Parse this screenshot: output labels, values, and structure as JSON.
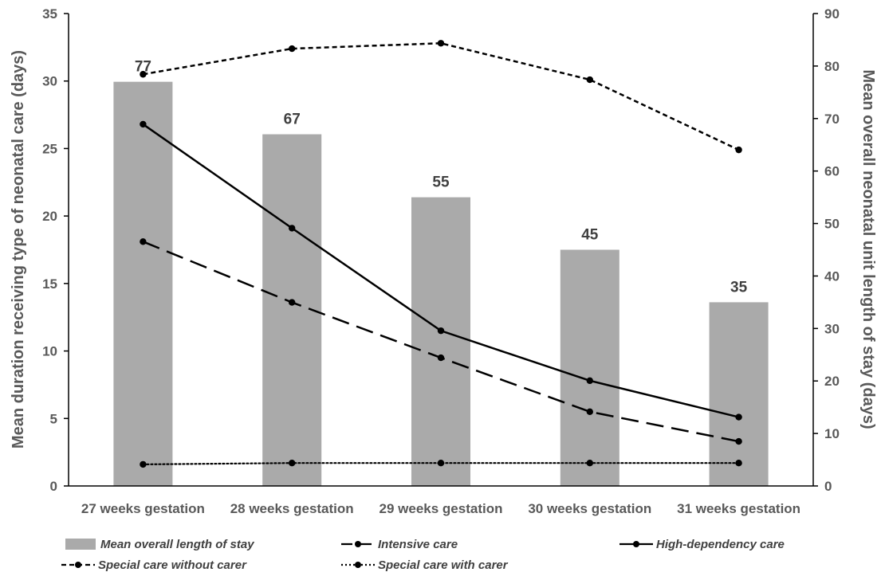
{
  "chart_data": {
    "type": "bar",
    "categories": [
      "27 weeks gestation",
      "28 weeks gestation",
      "29 weeks gestation",
      "30 weeks gestation",
      "31 weeks gestation"
    ],
    "ylabel": "Mean duration receiving type of neonatal care (days)",
    "y2label": "Mean overall neonatal unit length of stay (days)",
    "ylim": [
      0,
      35
    ],
    "y2lim": [
      0,
      90
    ],
    "yticks": [
      "0",
      "5",
      "10",
      "15",
      "20",
      "25",
      "30",
      "35"
    ],
    "y2ticks": [
      "0",
      "10",
      "20",
      "30",
      "40",
      "50",
      "60",
      "70",
      "80",
      "90"
    ],
    "bars": {
      "name": "Mean overall length of stay",
      "axis": "right",
      "color": "#aaaaaa",
      "values": [
        77,
        67,
        55,
        45,
        35
      ],
      "labels": [
        "77",
        "67",
        "55",
        "45",
        "35"
      ]
    },
    "series": [
      {
        "name": "Intensive care",
        "axis": "left",
        "style": "long-dash",
        "color": "#000000",
        "values": [
          18.1,
          13.6,
          9.5,
          5.5,
          3.3
        ]
      },
      {
        "name": "High-dependency care",
        "axis": "left",
        "style": "solid",
        "color": "#000000",
        "values": [
          26.8,
          19.1,
          11.5,
          7.8,
          5.1
        ]
      },
      {
        "name": "Special care without carer",
        "axis": "left",
        "style": "short-dash",
        "color": "#000000",
        "values": [
          30.5,
          32.4,
          32.8,
          30.1,
          24.9
        ]
      },
      {
        "name": "Special care with carer",
        "axis": "left",
        "style": "dotted",
        "color": "#000000",
        "values": [
          1.6,
          1.7,
          1.7,
          1.7,
          1.7
        ]
      }
    ],
    "legend_position": "bottom",
    "grid": false
  }
}
